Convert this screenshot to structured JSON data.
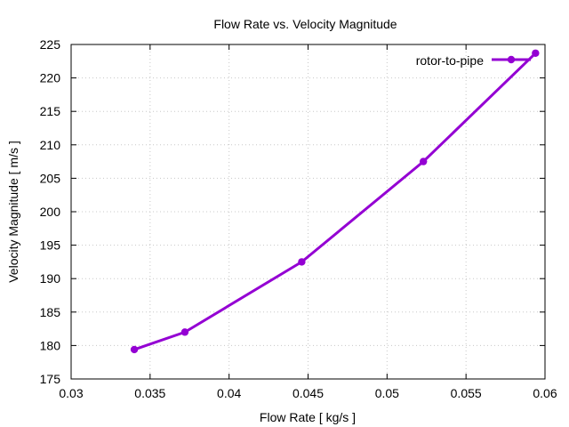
{
  "chart_data": {
    "type": "line",
    "title": "Flow Rate vs. Velocity Magnitude",
    "xlabel": "Flow Rate [ kg/s ]",
    "ylabel": "Velocity Magnitude [ m/s ]",
    "xlim": [
      0.03,
      0.06
    ],
    "ylim": [
      175,
      225
    ],
    "xticks": [
      0.03,
      0.035,
      0.04,
      0.045,
      0.05,
      0.055,
      0.06
    ],
    "xtick_labels": [
      "0.03",
      "0.035",
      "0.04",
      "0.045",
      "0.05",
      "0.055",
      "0.06"
    ],
    "yticks": [
      175,
      180,
      185,
      190,
      195,
      200,
      205,
      210,
      215,
      220,
      225
    ],
    "ytick_labels": [
      "175",
      "180",
      "185",
      "190",
      "195",
      "200",
      "205",
      "210",
      "215",
      "220",
      "225"
    ],
    "grid": true,
    "legend_position": "top-right",
    "series": [
      {
        "name": "rotor-to-pipe",
        "color": "#9400d3",
        "x": [
          0.034,
          0.0372,
          0.0446,
          0.0523,
          0.0594
        ],
        "y": [
          179.4,
          182.0,
          192.5,
          207.5,
          223.7
        ]
      }
    ]
  }
}
